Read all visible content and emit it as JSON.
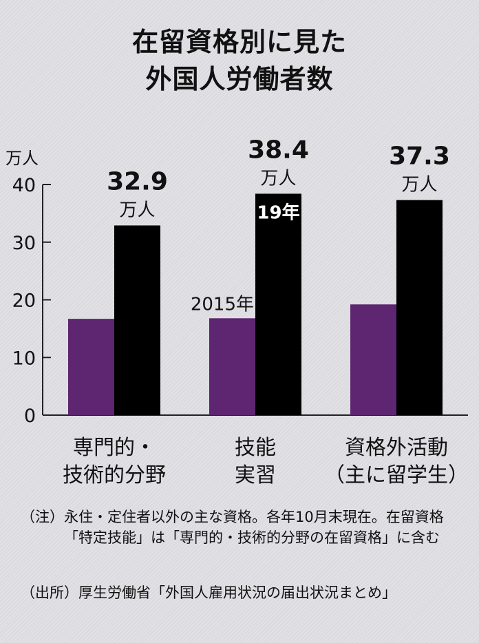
{
  "title": {
    "line1": "在留資格別に見た",
    "line2": "外国人労働者数"
  },
  "chart_data": {
    "type": "bar",
    "title": "在留資格別に見た外国人労働者数",
    "ylabel": "万人",
    "ylim": [
      0,
      40
    ],
    "yticks": [
      0,
      10,
      20,
      30,
      40
    ],
    "categories": [
      [
        "専門的・",
        "技術的分野"
      ],
      [
        "技能",
        "実習"
      ],
      [
        "資格外活動",
        "（主に留学生）"
      ]
    ],
    "series": [
      {
        "name": "2015年",
        "color": "#5e2570",
        "values": [
          16.7,
          16.8,
          19.2
        ]
      },
      {
        "name": "19年",
        "color": "#000000",
        "values": [
          32.9,
          38.4,
          37.3
        ]
      }
    ],
    "value_labels": [
      "32.9",
      "38.4",
      "37.3"
    ],
    "value_unit": "万人"
  },
  "notes": {
    "note_label": "（注）",
    "note_text": "永住・定住者以外の主な資格。各年10月末現在。在留資格「特定技能」は「専門的・技術的分野の在留資格」に含む",
    "source_label": "（出所）",
    "source_text": "厚生労働省「外国人雇用状況の届出状況まとめ」"
  }
}
